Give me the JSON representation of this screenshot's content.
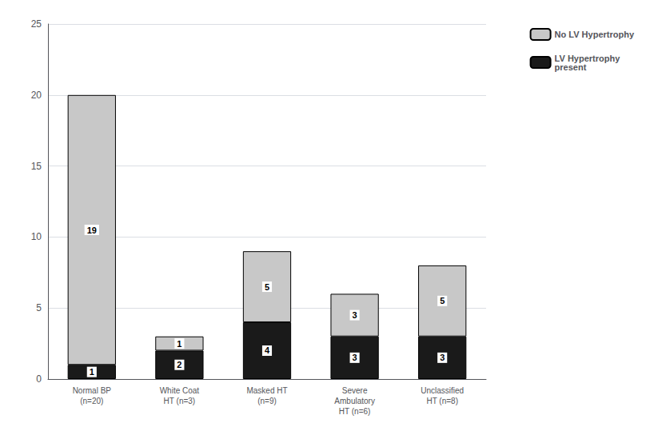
{
  "chart_data": {
    "type": "bar",
    "stacked": true,
    "categories": [
      "Normal BP\n(n=20)",
      "White Coat\nHT (n=3)",
      "Masked HT\n(n=9)",
      "Severe\nAmbulatory\nHT (n=6)",
      "Unclassified\nHT (n=8)"
    ],
    "series": [
      {
        "name": "LV Hypertrophy\npresent",
        "color": "#1a1a1a",
        "values": [
          1,
          2,
          4,
          3,
          3
        ]
      },
      {
        "name": "No LV Hypertrophy",
        "color": "#c8c8c8",
        "values": [
          19,
          1,
          5,
          3,
          5
        ]
      }
    ],
    "ylim": [
      0,
      25
    ],
    "yticks": [
      0,
      5,
      10,
      15,
      20,
      25
    ],
    "grid": true,
    "legend": "right",
    "data_labels": true
  }
}
